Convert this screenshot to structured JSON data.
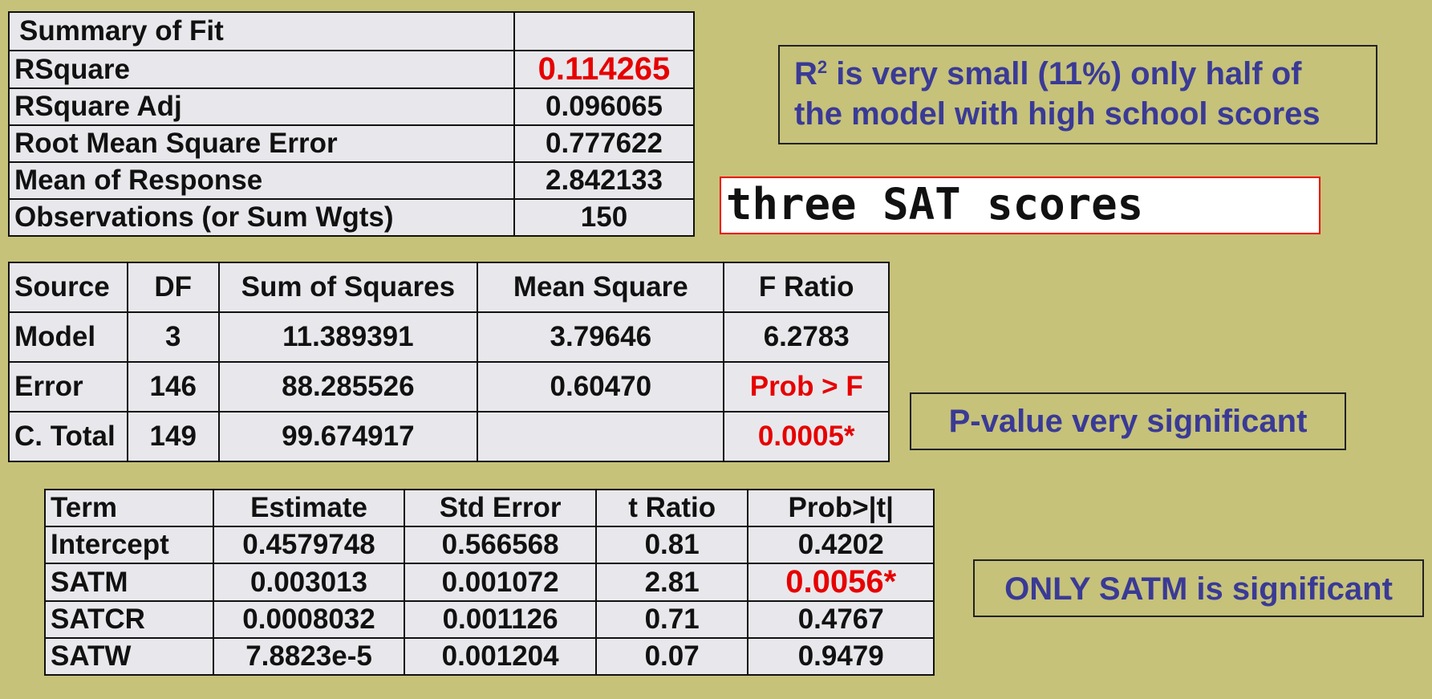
{
  "summary_of_fit": {
    "title": "Summary of Fit",
    "rows": [
      {
        "label": "RSquare",
        "value": "0.114265"
      },
      {
        "label": "RSquare Adj",
        "value": "0.096065"
      },
      {
        "label": "Root Mean Square Error",
        "value": "0.777622"
      },
      {
        "label": "Mean of Response",
        "value": "2.842133"
      },
      {
        "label": "Observations (or Sum Wgts)",
        "value": "150"
      }
    ]
  },
  "anova": {
    "headers": [
      "Source",
      "DF",
      "Sum of Squares",
      "Mean Square",
      "F Ratio"
    ],
    "rows": [
      [
        "Model",
        "3",
        "11.389391",
        "3.79646",
        "6.2783"
      ],
      [
        "Error",
        "146",
        "88.285526",
        "0.60470",
        "Prob > F"
      ],
      [
        "C. Total",
        "149",
        "99.674917",
        "",
        "0.0005*"
      ]
    ]
  },
  "parameter_estimates": {
    "headers": [
      "Term",
      "Estimate",
      "Std Error",
      "t Ratio",
      "Prob>|t|"
    ],
    "rows": [
      [
        "Intercept",
        "0.4579748",
        "0.566568",
        "0.81",
        "0.4202"
      ],
      [
        "SATM",
        "0.003013",
        "0.001072",
        "2.81",
        "0.0056*"
      ],
      [
        "SATCR",
        "0.0008032",
        "0.001126",
        "0.71",
        "0.4767"
      ],
      [
        "SATW",
        "7.8823e-5",
        "0.001204",
        "0.07",
        "0.9479"
      ]
    ]
  },
  "notes": {
    "r2_prefix": "R",
    "r2_sup": "2",
    "r2_line1_rest": " is very small (11%) only half of",
    "r2_line2": "the model with high school scores",
    "sat_label": "three SAT scores",
    "pvalue": "P-value very significant",
    "satm": "ONLY SATM is significant"
  },
  "colors": {
    "background": "#c6c27a",
    "highlight_red": "#e60000",
    "note_text": "#3a3a96"
  }
}
